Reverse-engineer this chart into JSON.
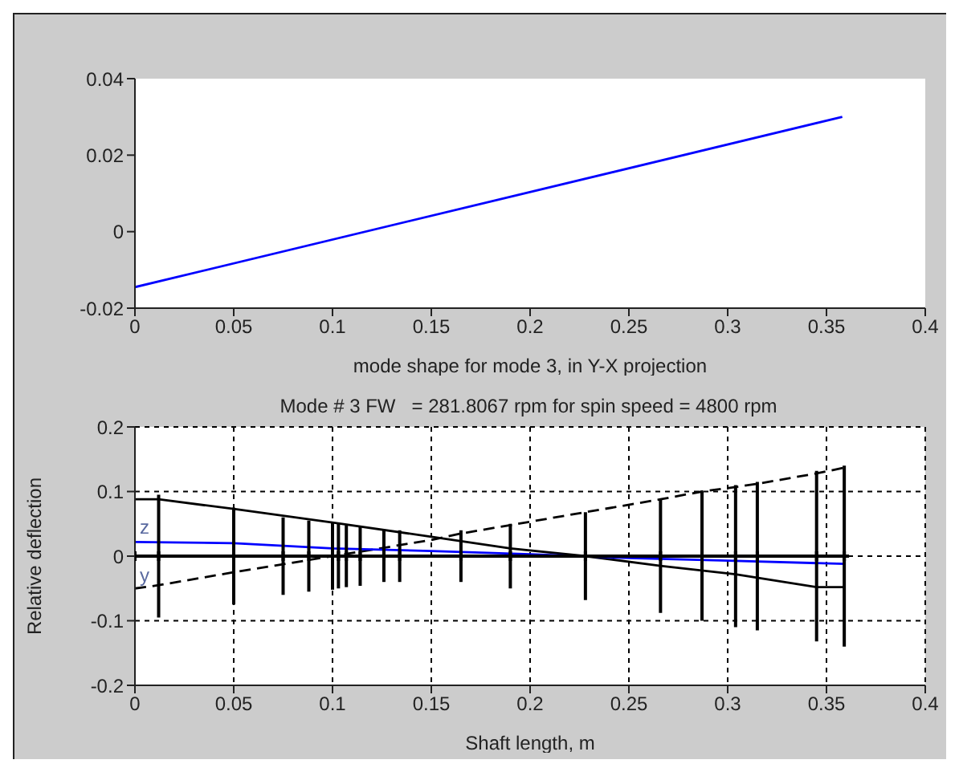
{
  "chart_data": [
    {
      "type": "line",
      "xlabel": "mode shape for mode 3, in Y-X projection",
      "x": [
        0,
        0.358
      ],
      "series": [
        {
          "color": "#0000ff",
          "values": [
            -0.0145,
            0.03
          ]
        }
      ],
      "xlim": [
        0,
        0.4
      ],
      "xticks": [
        0,
        0.05,
        0.1,
        0.15,
        0.2,
        0.25,
        0.3,
        0.35,
        0.4
      ],
      "ylim": [
        -0.02,
        0.04
      ],
      "yticks": [
        -0.02,
        0,
        0.02,
        0.04
      ],
      "grid": false,
      "marker": "none"
    },
    {
      "type": "line",
      "title": "Mode # 3 FW   = 281.8067 rpm for spin speed = 4800 rpm",
      "xlabel": "Shaft length, m",
      "ylabel": "Relative deflection",
      "series": [
        {
          "color": "#000000",
          "line_style": "solid",
          "marker": "none",
          "x": [
            0,
            0.012,
            0.05,
            0.1,
            0.15,
            0.19,
            0.228,
            0.266,
            0.304,
            0.345,
            0.359
          ],
          "values": [
            0.088,
            0.088,
            0.073,
            0.052,
            0.03,
            0.012,
            0,
            -0.015,
            -0.028,
            -0.048,
            -0.048
          ]
        },
        {
          "color": "#000000",
          "line_style": "dashed",
          "marker": "none",
          "x": [
            0,
            0.012,
            0.05,
            0.1,
            0.15,
            0.165,
            0.19,
            0.228,
            0.266,
            0.287,
            0.304,
            0.315,
            0.345,
            0.359
          ],
          "values": [
            -0.05,
            -0.045,
            -0.025,
            0,
            0.025,
            0.035,
            0.048,
            0.068,
            0.088,
            0.1,
            0.107,
            0.112,
            0.128,
            0.137
          ]
        },
        {
          "color": "#0000ff",
          "line_style": "solid",
          "marker": "none",
          "x": [
            0,
            0.05,
            0.1,
            0.15,
            0.2,
            0.25,
            0.3,
            0.359
          ],
          "values": [
            0.022,
            0.02,
            0.012,
            0.008,
            0.003,
            -0.003,
            -0.007,
            -0.012
          ]
        },
        {
          "color": "#000000",
          "line_style": "solid",
          "marker": "cross",
          "x": [
            0,
            0.012,
            0.05,
            0.075,
            0.088,
            0.1,
            0.103,
            0.107,
            0.114,
            0.126,
            0.134,
            0.165,
            0.19,
            0.228,
            0.266,
            0.287,
            0.304,
            0.315,
            0.345,
            0.359
          ],
          "values": [
            0,
            0,
            0,
            0,
            0,
            0,
            0,
            0,
            0,
            0,
            0,
            0,
            0,
            0,
            0,
            0,
            0,
            0,
            0,
            0
          ],
          "errors": [
            null,
            0.095,
            0.075,
            0.06,
            0.055,
            0.052,
            0.05,
            0.048,
            0.046,
            0.04,
            0.04,
            0.04,
            0.05,
            0.068,
            0.088,
            0.1,
            0.11,
            0.115,
            0.132,
            0.14
          ]
        }
      ],
      "annotations": [
        {
          "text": "z",
          "x": 0,
          "y": 0.03
        },
        {
          "text": "y",
          "x": 0,
          "y": -0.01
        }
      ],
      "xlim": [
        0,
        0.4
      ],
      "xticks": [
        0,
        0.05,
        0.1,
        0.15,
        0.2,
        0.25,
        0.3,
        0.35,
        0.4
      ],
      "ylim": [
        -0.2,
        0.2
      ],
      "yticks": [
        -0.2,
        -0.1,
        0,
        0.1,
        0.2
      ],
      "grid": true
    }
  ]
}
